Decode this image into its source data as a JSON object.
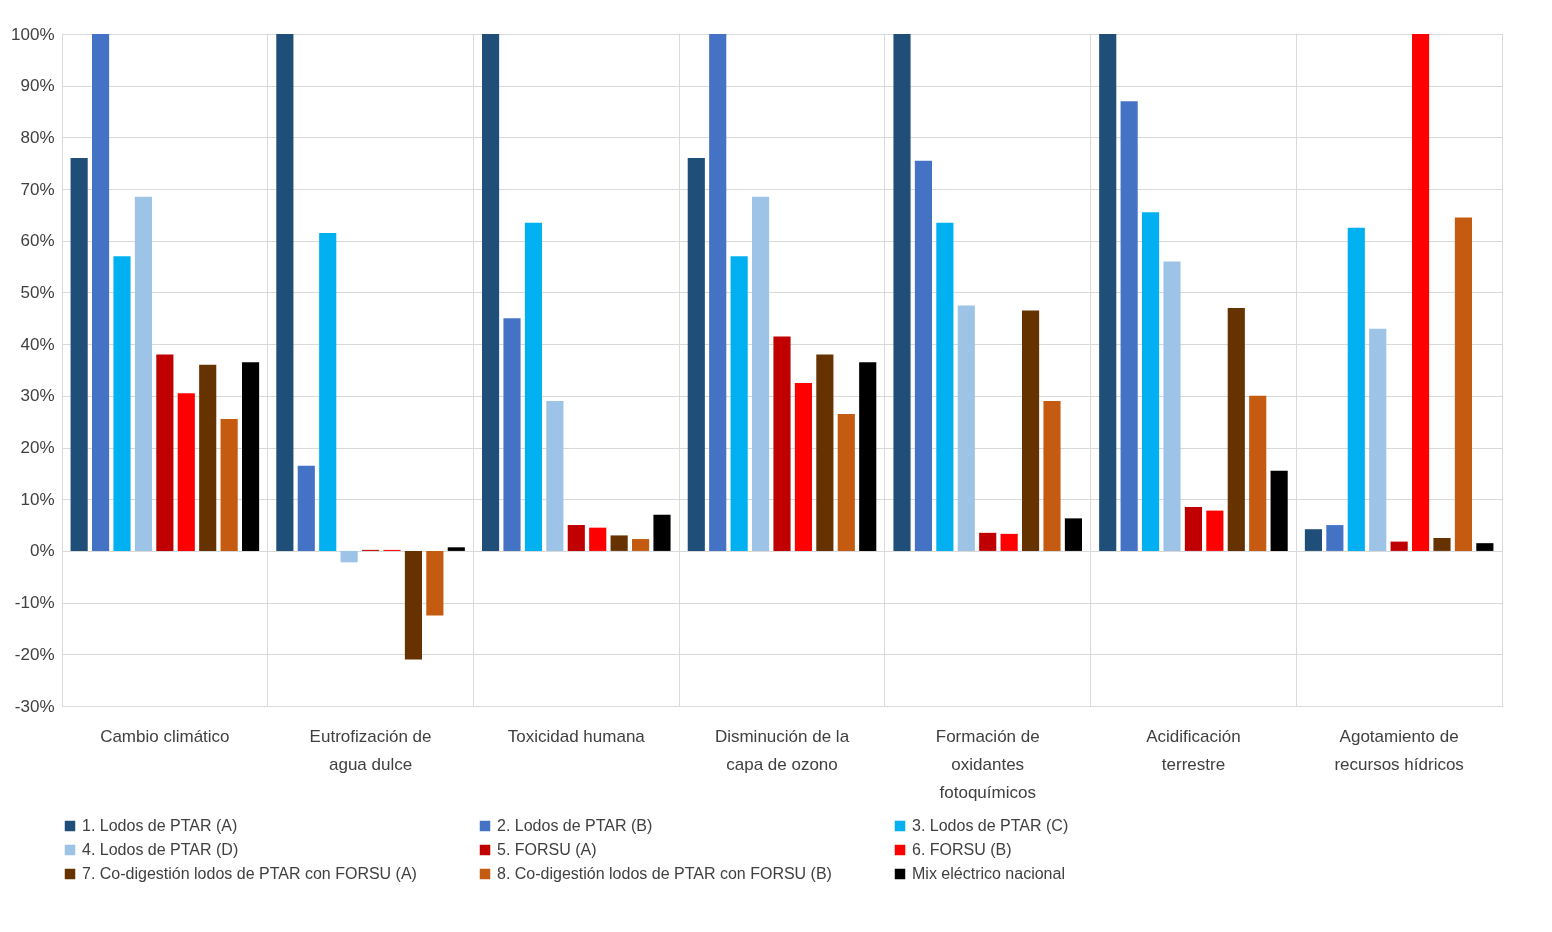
{
  "chart_data": {
    "type": "bar",
    "categories": [
      "Cambio climático",
      "Eutrofización de agua dulce",
      "Toxicidad humana",
      "Disminución de la capa de ozono",
      "Formación de oxidantes fotoquímicos",
      "Acidificación terrestre",
      "Agotamiento de recursos hídricos"
    ],
    "series": [
      {
        "name": "1. Lodos de PTAR (A)",
        "color": "#1f4e79",
        "values": [
          76,
          100,
          100,
          76,
          100,
          100,
          4.2
        ]
      },
      {
        "name": "2. Lodos de PTAR (B)",
        "color": "#4472c4",
        "values": [
          100,
          16.5,
          45,
          100,
          75.5,
          87,
          5
        ]
      },
      {
        "name": "3. Lodos de PTAR (C)",
        "color": "#00b0f0",
        "values": [
          57,
          61.5,
          63.5,
          57,
          63.5,
          65.5,
          62.5
        ]
      },
      {
        "name": "4. Lodos de PTAR (D)",
        "color": "#9dc3e6",
        "values": [
          68.5,
          -2.2,
          29,
          68.5,
          47.5,
          56,
          43
        ]
      },
      {
        "name": "5. FORSU (A)",
        "color": "#c00000",
        "values": [
          38,
          0.2,
          5,
          41.5,
          3.5,
          8.5,
          1.8
        ]
      },
      {
        "name": "6. FORSU (B)",
        "color": "#ff0000",
        "values": [
          30.5,
          0.2,
          4.5,
          32.5,
          3.3,
          7.8,
          100
        ]
      },
      {
        "name": "7. Co-digestión lodos de PTAR con FORSU (A)",
        "color": "#663300",
        "values": [
          36,
          -21,
          3,
          38,
          46.5,
          47,
          2.5
        ]
      },
      {
        "name": "8. Co-digestión lodos de PTAR con FORSU (B)",
        "color": "#c55a11",
        "values": [
          25.5,
          -12.5,
          2.3,
          26.5,
          29,
          30,
          64.5
        ]
      },
      {
        "name": "Mix eléctrico nacional",
        "color": "#000000",
        "values": [
          36.5,
          0.7,
          7,
          36.5,
          6.3,
          15.5,
          1.5
        ]
      }
    ],
    "ylim": [
      -30,
      100
    ],
    "yticks": [
      {
        "value": -30,
        "label": "-30%"
      },
      {
        "value": -20,
        "label": "-20%"
      },
      {
        "value": -10,
        "label": "-10%"
      },
      {
        "value": 0,
        "label": "0%"
      },
      {
        "value": 10,
        "label": "10%"
      },
      {
        "value": 20,
        "label": "20%"
      },
      {
        "value": 30,
        "label": "30%"
      },
      {
        "value": 40,
        "label": "40%"
      },
      {
        "value": 50,
        "label": "50%"
      },
      {
        "value": 60,
        "label": "60%"
      },
      {
        "value": 70,
        "label": "70%"
      },
      {
        "value": 80,
        "label": "80%"
      },
      {
        "value": 90,
        "label": "90%"
      },
      {
        "value": 100,
        "label": "100%"
      }
    ],
    "grid": true,
    "legend": "bottom"
  }
}
